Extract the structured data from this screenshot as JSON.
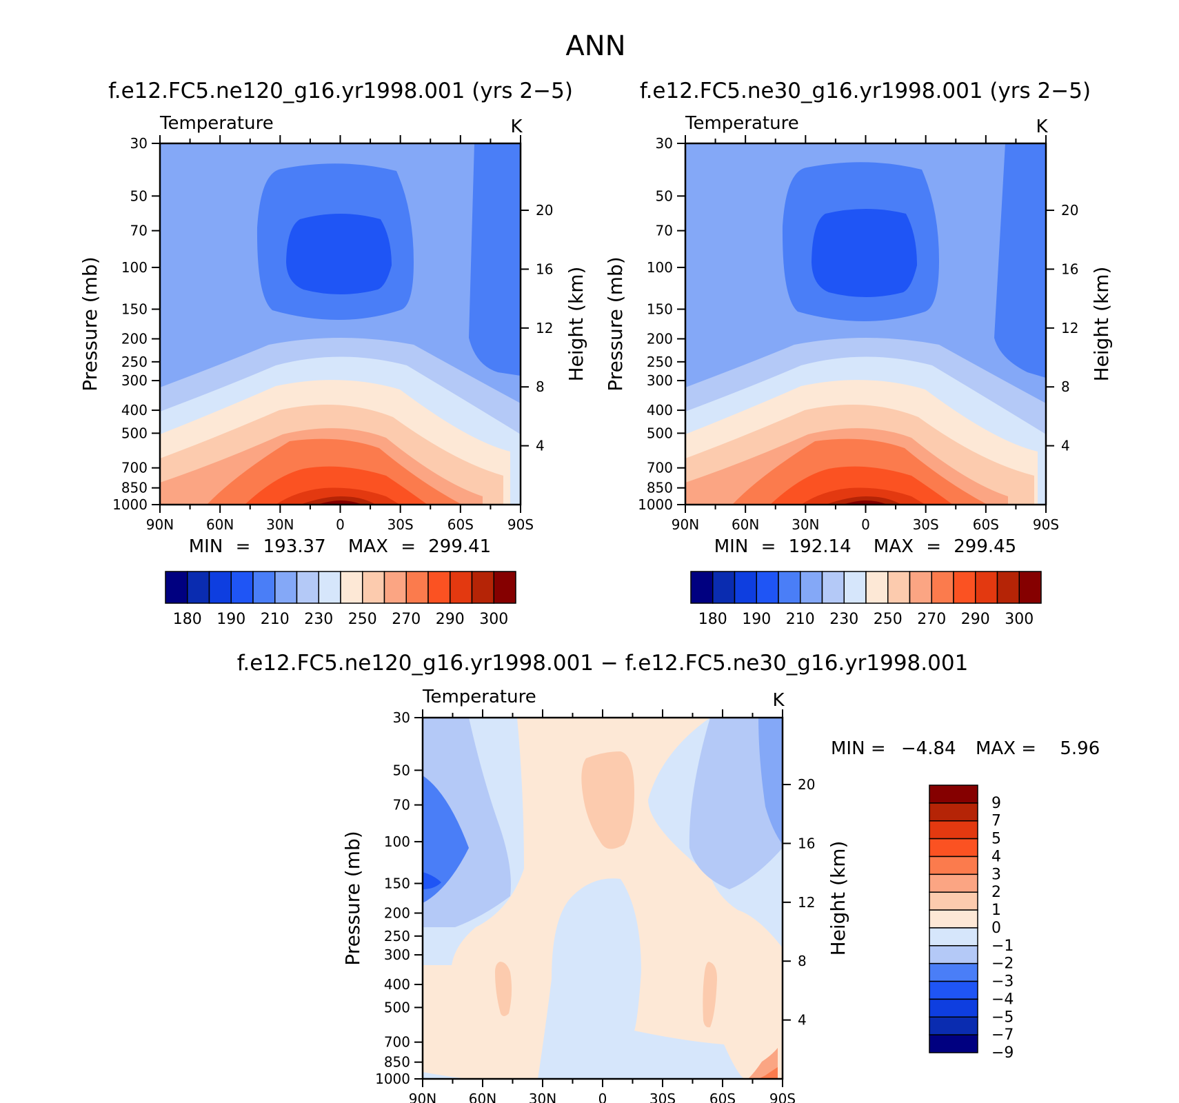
{
  "page_title": "ANN",
  "colors": {
    "abs_levels": [
      "#000080",
      "#0a2cb0",
      "#0e3ee0",
      "#1f55f5",
      "#4a7ef7",
      "#84a8f7",
      "#b4c9f7",
      "#d6e6fb",
      "#fde8d6",
      "#fccbae",
      "#fba583",
      "#fb7b4d",
      "#fb5222",
      "#e33910",
      "#b52406",
      "#850000"
    ],
    "diff_levels": [
      "#000080",
      "#0a2cb0",
      "#0e3ee0",
      "#1f55f5",
      "#4a7ef7",
      "#b4c9f7",
      "#d6e6fb",
      "#fde8d6",
      "#fccbae",
      "#fba583",
      "#fb7b4d",
      "#fb5222",
      "#e33910",
      "#b52406",
      "#850000"
    ]
  },
  "chart_data": [
    {
      "id": "left",
      "type": "heatmap",
      "title": "f.e12.FC5.ne120_g16.yr1998.001 (yrs 2−5)",
      "variable_label": "Temperature",
      "units_label": "K",
      "ylabel": "Pressure (mb)",
      "ylabel_right": "Height (km)",
      "x_ticks": [
        "90N",
        "60N",
        "30N",
        "0",
        "30S",
        "60S",
        "90S"
      ],
      "y_ticks": [
        "30",
        "50",
        "70",
        "100",
        "150",
        "200",
        "250",
        "300",
        "400",
        "500",
        "700",
        "850",
        "1000"
      ],
      "height_ticks": [
        "20",
        "16",
        "12",
        "8",
        "4"
      ],
      "ylim": [
        1000,
        30
      ],
      "stats": {
        "min_label": "MIN",
        "min_value": "193.37",
        "max_label": "MAX",
        "max_value": "299.41"
      },
      "colorbar": {
        "orientation": "horizontal",
        "levels": [
          180,
          185,
          190,
          200,
          210,
          220,
          230,
          240,
          250,
          260,
          270,
          280,
          290,
          295,
          300
        ],
        "labels": [
          "180",
          "190",
          "210",
          "230",
          "250",
          "270",
          "290",
          "300"
        ]
      }
    },
    {
      "id": "right",
      "type": "heatmap",
      "title": "f.e12.FC5.ne30_g16.yr1998.001 (yrs 2−5)",
      "variable_label": "Temperature",
      "units_label": "K",
      "ylabel": "Pressure (mb)",
      "ylabel_right": "Height (km)",
      "x_ticks": [
        "90N",
        "60N",
        "30N",
        "0",
        "30S",
        "60S",
        "90S"
      ],
      "y_ticks": [
        "30",
        "50",
        "70",
        "100",
        "150",
        "200",
        "250",
        "300",
        "400",
        "500",
        "700",
        "850",
        "1000"
      ],
      "height_ticks": [
        "20",
        "16",
        "12",
        "8",
        "4"
      ],
      "ylim": [
        1000,
        30
      ],
      "stats": {
        "min_label": "MIN",
        "min_value": "192.14",
        "max_label": "MAX",
        "max_value": "299.45"
      },
      "colorbar": {
        "orientation": "horizontal",
        "levels": [
          180,
          185,
          190,
          200,
          210,
          220,
          230,
          240,
          250,
          260,
          270,
          280,
          290,
          295,
          300
        ],
        "labels": [
          "180",
          "190",
          "210",
          "230",
          "250",
          "270",
          "290",
          "300"
        ]
      }
    },
    {
      "id": "diff",
      "type": "heatmap",
      "title": "f.e12.FC5.ne120_g16.yr1998.001 − f.e12.FC5.ne30_g16.yr1998.001",
      "variable_label": "Temperature",
      "units_label": "K",
      "ylabel": "Pressure (mb)",
      "ylabel_right": "Height (km)",
      "x_ticks": [
        "90N",
        "60N",
        "30N",
        "0",
        "30S",
        "60S",
        "90S"
      ],
      "y_ticks": [
        "30",
        "50",
        "70",
        "100",
        "150",
        "200",
        "250",
        "300",
        "400",
        "500",
        "700",
        "850",
        "1000"
      ],
      "height_ticks": [
        "20",
        "16",
        "12",
        "8",
        "4"
      ],
      "ylim": [
        1000,
        30
      ],
      "stats": {
        "min_label": "MIN =",
        "min_value": "−4.84",
        "max_label": "MAX =",
        "max_value": "5.96"
      },
      "colorbar": {
        "orientation": "vertical",
        "labels": [
          "9",
          "7",
          "5",
          "4",
          "3",
          "2",
          "1",
          "0",
          "−1",
          "−2",
          "−3",
          "−4",
          "−5",
          "−7",
          "−9"
        ]
      }
    }
  ]
}
